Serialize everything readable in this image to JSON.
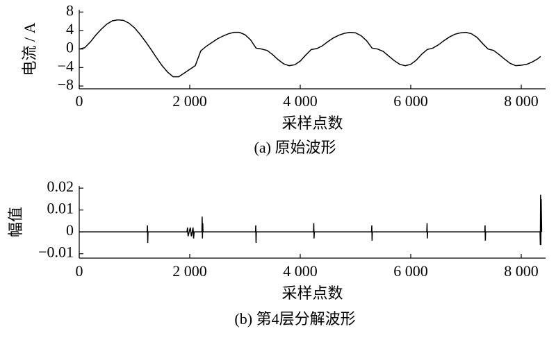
{
  "chart_data": [
    {
      "type": "line",
      "x_label": "采样点数",
      "y_label": "电流 / A",
      "caption": "(a)  原始波形",
      "xlim": [
        0,
        8440
      ],
      "ylim": [
        -8.6,
        8.5
      ],
      "xticks": [
        0,
        {
          "value": 2000,
          "label": "2 000"
        },
        {
          "value": 4000,
          "label": "4 000"
        },
        {
          "value": 6000,
          "label": "6 000"
        },
        {
          "value": 8000,
          "label": "8 000"
        }
      ],
      "yticks": [
        {
          "value": -8,
          "label": "−8"
        },
        {
          "value": -4,
          "label": "−4"
        },
        0,
        4,
        8
      ],
      "x": [
        0,
        100,
        200,
        300,
        400,
        500,
        600,
        700,
        800,
        900,
        1000,
        1100,
        1200,
        1300,
        1400,
        1500,
        1600,
        1700,
        1800,
        1900,
        2000,
        2100,
        2200,
        2300,
        2400,
        2500,
        2600,
        2700,
        2800,
        2900,
        3000,
        3100,
        3200,
        3300,
        3400,
        3500,
        3600,
        3700,
        3800,
        3900,
        4000,
        4100,
        4200,
        4300,
        4400,
        4500,
        4600,
        4700,
        4800,
        4900,
        5000,
        5100,
        5200,
        5300,
        5400,
        5500,
        5600,
        5700,
        5800,
        5900,
        6000,
        6100,
        6200,
        6300,
        6400,
        6500,
        6600,
        6700,
        6800,
        6900,
        7000,
        7100,
        7200,
        7300,
        7400,
        7500,
        7600,
        7700,
        7800,
        7900,
        8000,
        8100,
        8200,
        8300,
        8350
      ],
      "series": [
        {
          "color": "#000000",
          "values": [
            0,
            0.3,
            1.5,
            3,
            4.3,
            5.4,
            6.1,
            6.3,
            6.2,
            5.6,
            4.6,
            3.2,
            1.6,
            -0.1,
            -1.9,
            -3.6,
            -5,
            -6,
            -6,
            -5.2,
            -4.4,
            -3.6,
            -0.4,
            0.6,
            1.4,
            2.2,
            2.8,
            3.3,
            3.6,
            3.6,
            3.1,
            2.0,
            0.2,
            0,
            -0.3,
            -1.2,
            -2.3,
            -3.2,
            -3.6,
            -3.4,
            -2.6,
            -1.3,
            -0.1,
            0.1,
            0.7,
            1.6,
            2.4,
            3.0,
            3.4,
            3.6,
            3.5,
            2.9,
            1.8,
            0.2,
            0,
            -0.5,
            -1.5,
            -2.5,
            -3.3,
            -3.6,
            -3.3,
            -2.4,
            -1.1,
            -0.1,
            0.2,
            0.9,
            1.8,
            2.6,
            3.2,
            3.5,
            3.6,
            3.3,
            2.5,
            1.2,
            0,
            -0.3,
            -1.2,
            -2.2,
            -3.1,
            -3.6,
            -3.5,
            -3.3,
            -2.8,
            -2.1,
            -1.6
          ]
        }
      ]
    },
    {
      "type": "line",
      "x_label": "采样点数",
      "y_label": "幅值",
      "caption": "(b)  第4层分解波形",
      "xlim": [
        0,
        8440
      ],
      "ylim": [
        -0.012,
        0.021
      ],
      "xticks": [
        0,
        {
          "value": 2000,
          "label": "2 000"
        },
        {
          "value": 4000,
          "label": "4 000"
        },
        {
          "value": 6000,
          "label": "6 000"
        },
        {
          "value": 8000,
          "label": "8 000"
        }
      ],
      "yticks": [
        {
          "value": -0.01,
          "label": "−0.01"
        },
        0,
        0.01,
        0.02
      ],
      "x": [
        0,
        1230,
        1235,
        1240,
        1245,
        1950,
        1960,
        1970,
        2010,
        2030,
        2060,
        2070,
        2080,
        2220,
        2225,
        2230,
        2235,
        2240,
        3190,
        3195,
        3200,
        3205,
        4240,
        4245,
        4250,
        4255,
        5290,
        5295,
        5300,
        5305,
        6290,
        6295,
        6300,
        6305,
        7340,
        7345,
        7350,
        7355,
        8340,
        8345,
        8350,
        8355,
        8360,
        8370
      ],
      "series": [
        {
          "color": "#000000",
          "values": [
            0,
            0,
            0.003,
            -0.005,
            0,
            0,
            0.002,
            -0.002,
            0.002,
            -0.002,
            0.002,
            -0.003,
            0,
            0,
            0.007,
            -0.003,
            0.004,
            0,
            0,
            0.003,
            -0.005,
            0,
            0,
            0.004,
            -0.003,
            0,
            0,
            0.003,
            -0.004,
            0,
            0,
            0.004,
            -0.003,
            0,
            0,
            0.003,
            -0.004,
            0,
            0,
            -0.006,
            0.017,
            -0.006,
            0.015,
            0
          ]
        }
      ]
    }
  ]
}
